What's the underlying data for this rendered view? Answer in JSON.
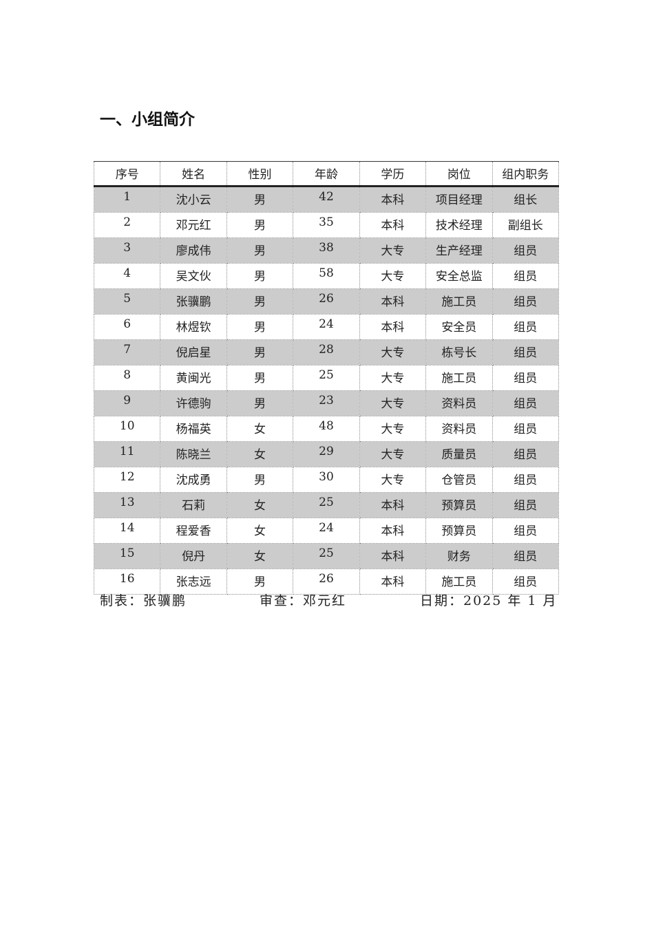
{
  "title": "一、小组简介",
  "table": {
    "headers": [
      "序号",
      "姓名",
      "性别",
      "年龄",
      "学历",
      "岗位",
      "组内职务"
    ],
    "rows": [
      [
        "1",
        "沈小云",
        "男",
        "42",
        "本科",
        "项目经理",
        "组长"
      ],
      [
        "2",
        "邓元红",
        "男",
        "35",
        "本科",
        "技术经理",
        "副组长"
      ],
      [
        "3",
        "廖成伟",
        "男",
        "38",
        "大专",
        "生产经理",
        "组员"
      ],
      [
        "4",
        "吴文伙",
        "男",
        "58",
        "大专",
        "安全总监",
        "组员"
      ],
      [
        "5",
        "张骥鹏",
        "男",
        "26",
        "本科",
        "施工员",
        "组员"
      ],
      [
        "6",
        "林煜钦",
        "男",
        "24",
        "本科",
        "安全员",
        "组员"
      ],
      [
        "7",
        "倪启星",
        "男",
        "28",
        "大专",
        "栋号长",
        "组员"
      ],
      [
        "8",
        "黄闽光",
        "男",
        "25",
        "大专",
        "施工员",
        "组员"
      ],
      [
        "9",
        "许德驹",
        "男",
        "23",
        "大专",
        "资料员",
        "组员"
      ],
      [
        "10",
        "杨福英",
        "女",
        "48",
        "大专",
        "资料员",
        "组员"
      ],
      [
        "11",
        "陈晓兰",
        "女",
        "29",
        "大专",
        "质量员",
        "组员"
      ],
      [
        "12",
        "沈成勇",
        "男",
        "30",
        "大专",
        "仓管员",
        "组员"
      ],
      [
        "13",
        "石莉",
        "女",
        "25",
        "本科",
        "预算员",
        "组员"
      ],
      [
        "14",
        "程爱香",
        "女",
        "24",
        "本科",
        "预算员",
        "组员"
      ],
      [
        "15",
        "倪丹",
        "女",
        "25",
        "本科",
        "财务",
        "组员"
      ],
      [
        "16",
        "张志远",
        "男",
        "26",
        "本科",
        "施工员",
        "组员"
      ]
    ]
  },
  "footer": {
    "made_by": "制表：张骥鹏",
    "reviewed_by": "审查：邓元红",
    "date": "日期：2025 年 1 月"
  },
  "colors": {
    "shaded_row": "#cccccc"
  }
}
